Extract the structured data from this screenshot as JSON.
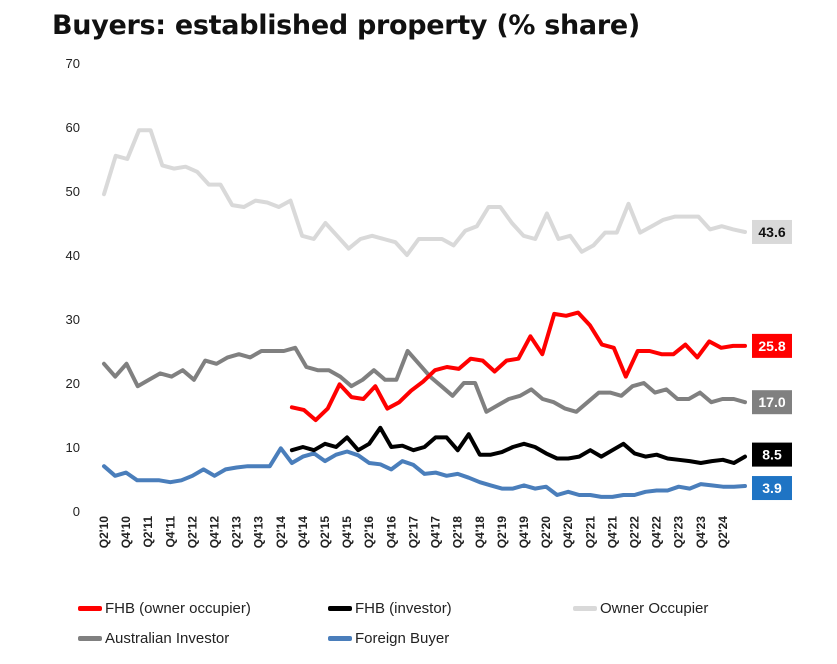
{
  "chart_data": {
    "type": "line",
    "title": "Buyers: established property (% share)",
    "xlabel": "",
    "ylabel": "",
    "ylim": [
      0,
      70
    ],
    "yticks": [
      0,
      10,
      20,
      30,
      40,
      50,
      60,
      70
    ],
    "grid": false,
    "legend_position": "bottom",
    "x_tick_labels": [
      "Q2'10",
      "Q4'10",
      "Q2'11",
      "Q4'11",
      "Q2'12",
      "Q4'12",
      "Q2'13",
      "Q4'13",
      "Q2'14",
      "Q4'14",
      "Q2'15",
      "Q4'15",
      "Q2'16",
      "Q4'16",
      "Q2'17",
      "Q4'17",
      "Q2'18",
      "Q4'18",
      "Q2'19",
      "Q4'19",
      "Q2'20",
      "Q4'20",
      "Q2'21",
      "Q4'21",
      "Q2'22",
      "Q4'22",
      "Q2'23",
      "Q4'23",
      "Q2'24"
    ],
    "series": [
      {
        "name": "Owner Occupier",
        "color": "#d9d9d9",
        "start_index": 0,
        "end_label": "43.6",
        "label_text_color": "#111111",
        "values": [
          49.5,
          55.5,
          55,
          59.5,
          59.5,
          54,
          53.5,
          53.8,
          53,
          51,
          51,
          47.8,
          47.5,
          48.5,
          48.2,
          47.5,
          48.5,
          43,
          42.5,
          45,
          43,
          41,
          42.5,
          43,
          42.5,
          42,
          40,
          42.5,
          42.5,
          42.5,
          41.5,
          43.8,
          44.5,
          47.5,
          47.5,
          45,
          43,
          42.5,
          46.5,
          42.5,
          43,
          40.5,
          41.5,
          43.5,
          43.5,
          48,
          43.5,
          44.5,
          45.5,
          46,
          46,
          46,
          44,
          44.5,
          44,
          43.6
        ]
      },
      {
        "name": "Australian Investor",
        "color": "#808080",
        "start_index": 0,
        "end_label": "17.0",
        "label_text_color": "#ffffff",
        "values": [
          23,
          21,
          23,
          19.5,
          20.5,
          21.5,
          21,
          22,
          20.5,
          23.5,
          23,
          24,
          24.5,
          24,
          25,
          25,
          25,
          25.5,
          22.5,
          22,
          22,
          21,
          19.5,
          20.5,
          22,
          20.5,
          20.5,
          25,
          23,
          21,
          19.5,
          18,
          20,
          20,
          15.5,
          16.5,
          17.5,
          18,
          19,
          17.5,
          17,
          16,
          15.5,
          17,
          18.5,
          18.5,
          18,
          19.5,
          20,
          18.5,
          19,
          17.5,
          17.5,
          18.5,
          17,
          17.5,
          17.5,
          17
        ]
      },
      {
        "name": "FHB (owner occupier)",
        "color": "#ff0000",
        "start_index": 17,
        "end_label": "25.8",
        "label_text_color": "#ffffff",
        "values": [
          16.2,
          15.8,
          14.2,
          16,
          19.8,
          17.8,
          17.5,
          19.5,
          16,
          17,
          18.8,
          20.2,
          22,
          22.5,
          22.2,
          23.8,
          23.5,
          21.8,
          23.5,
          23.8,
          27.3,
          24.5,
          30.8,
          30.5,
          31,
          29,
          26,
          25.5,
          21,
          25,
          25,
          24.5,
          24.5,
          26,
          24,
          26.5,
          25.5,
          25.8,
          25.8
        ]
      },
      {
        "name": "FHB (investor)",
        "color": "#000000",
        "start_index": 17,
        "end_label": "8.5",
        "label_text_color": "#ffffff",
        "values": [
          9.5,
          10,
          9.5,
          10.5,
          10,
          11.5,
          9.5,
          10.5,
          13,
          10,
          10.2,
          9.5,
          10,
          11.5,
          11.5,
          9.5,
          12,
          8.8,
          8.8,
          9.2,
          10,
          10.5,
          10,
          9,
          8.2,
          8.2,
          8.5,
          9.5,
          8.5,
          9.5,
          10.5,
          9,
          8.5,
          8.8,
          8.2,
          8,
          7.8,
          7.5,
          7.8,
          8,
          7.5,
          8.5
        ]
      },
      {
        "name": "Foreign Buyer",
        "color": "#4a7ebb",
        "start_index": 0,
        "end_label": "3.9",
        "label_text_color": "#ffffff",
        "values": [
          7,
          5.5,
          6,
          4.8,
          4.8,
          4.8,
          4.5,
          4.8,
          5.5,
          6.5,
          5.5,
          6.5,
          6.8,
          7,
          7,
          7,
          9.8,
          7.5,
          8.5,
          9,
          7.8,
          8.8,
          9.3,
          8.7,
          7.5,
          7.3,
          6.5,
          7.8,
          7.2,
          5.8,
          6,
          5.5,
          5.8,
          5.2,
          4.5,
          4,
          3.5,
          3.5,
          4,
          3.5,
          3.8,
          2.5,
          3,
          2.5,
          2.5,
          2.2,
          2.2,
          2.5,
          2.5,
          3,
          3.2,
          3.2,
          3.8,
          3.5,
          4.2,
          4,
          3.8,
          3.8,
          3.9
        ]
      }
    ]
  },
  "legend": {
    "items": [
      {
        "label": "FHB (owner occupier)",
        "color": "#ff0000"
      },
      {
        "label": "FHB (investor)",
        "color": "#000000"
      },
      {
        "label": "Owner Occupier",
        "color": "#d9d9d9"
      },
      {
        "label": "Australian Investor",
        "color": "#808080"
      },
      {
        "label": "Foreign Buyer",
        "color": "#4a7ebb"
      }
    ]
  }
}
